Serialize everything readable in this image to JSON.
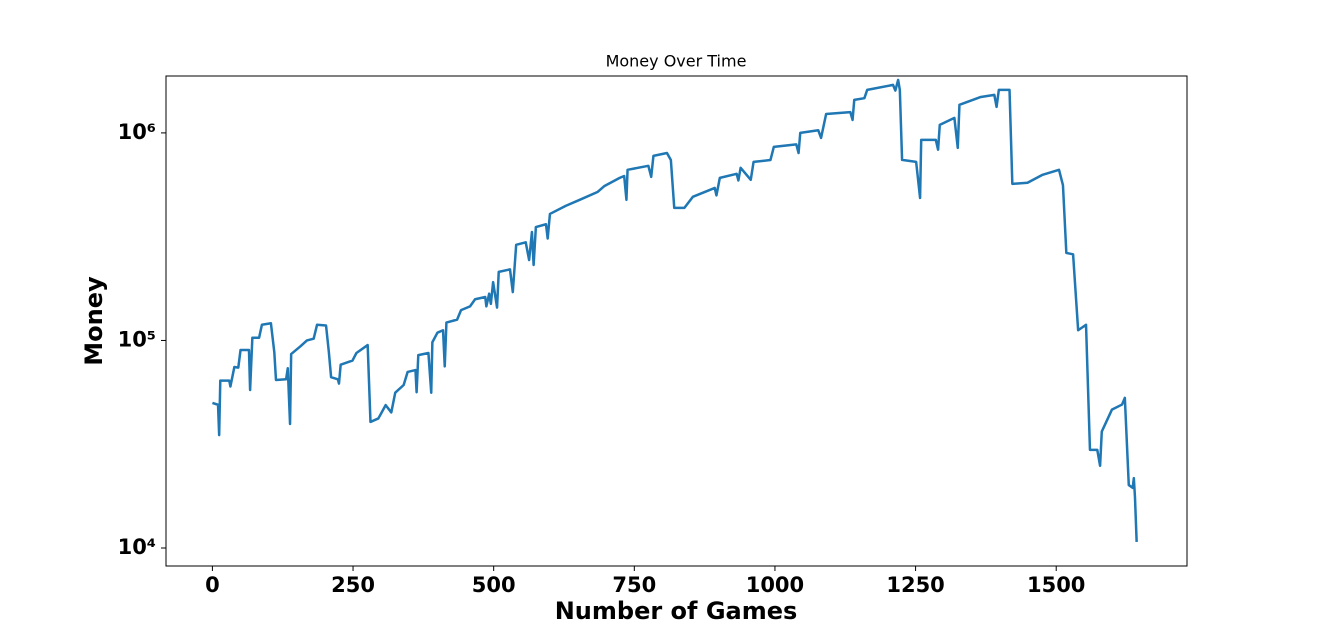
{
  "chart_data": {
    "type": "line",
    "title": "Money Over Time",
    "xlabel": "Number of Games",
    "ylabel": "Money",
    "yscale": "log",
    "color": "#1f77b4",
    "grid": false,
    "xlim": [
      -82.5,
      1732.5
    ],
    "xticks": [
      0,
      250,
      500,
      750,
      1000,
      1250,
      1500
    ],
    "ylim": [
      8190,
      1880000
    ],
    "yticks": [
      {
        "value": 10000,
        "label": "10⁴"
      },
      {
        "value": 100000,
        "label": "10⁵"
      },
      {
        "value": 1000000,
        "label": "10⁶"
      }
    ],
    "x": [
      0,
      10,
      12,
      14,
      30,
      32,
      39,
      46,
      50,
      65,
      67,
      71,
      83,
      88,
      104,
      110,
      113,
      131,
      134,
      138,
      140,
      157,
      168,
      180,
      186,
      202,
      207,
      211,
      223,
      225,
      228,
      249,
      256,
      276,
      281,
      295,
      308,
      318,
      325,
      340,
      347,
      361,
      363,
      366,
      384,
      389,
      391,
      400,
      410,
      413,
      416,
      435,
      442,
      458,
      467,
      485,
      487,
      492,
      495,
      499,
      506,
      509,
      529,
      534,
      540,
      557,
      563,
      568,
      571,
      575,
      593,
      596,
      600,
      628,
      653,
      685,
      697,
      724,
      732,
      736,
      738,
      775,
      780,
      784,
      808,
      815,
      821,
      839,
      854,
      893,
      896,
      902,
      932,
      935,
      939,
      957,
      962,
      992,
      998,
      1038,
      1042,
      1045,
      1077,
      1082,
      1091,
      1134,
      1138,
      1141,
      1159,
      1164,
      1210,
      1214,
      1219,
      1222,
      1226,
      1251,
      1258,
      1260,
      1286,
      1290,
      1293,
      1319,
      1325,
      1328,
      1366,
      1390,
      1394,
      1398,
      1417,
      1422,
      1449,
      1475,
      1505,
      1512,
      1518,
      1530,
      1539,
      1553,
      1560,
      1573,
      1578,
      1581,
      1599,
      1617,
      1622,
      1629,
      1636,
      1638,
      1640,
      1643
    ],
    "values": [
      50000,
      49000,
      35000,
      64000,
      64000,
      60000,
      74500,
      74000,
      90000,
      90000,
      57700,
      103000,
      103000,
      119000,
      121000,
      88000,
      64500,
      65000,
      73500,
      39600,
      86000,
      94000,
      100000,
      102000,
      119000,
      118000,
      88000,
      66500,
      65000,
      62000,
      76400,
      80000,
      87000,
      95000,
      40500,
      42100,
      48800,
      45000,
      56000,
      61000,
      70500,
      72000,
      56300,
      85000,
      87000,
      56000,
      98000,
      109000,
      112000,
      75000,
      122000,
      126000,
      140000,
      146000,
      158000,
      162000,
      146000,
      168000,
      150000,
      191000,
      144000,
      214000,
      220000,
      171000,
      289000,
      297000,
      244000,
      333000,
      231000,
      352000,
      363000,
      310000,
      407000,
      445000,
      476000,
      520000,
      555000,
      607000,
      620000,
      476000,
      664000,
      694000,
      614000,
      775000,
      800000,
      740000,
      435000,
      435000,
      492000,
      543000,
      500000,
      607000,
      635000,
      590000,
      679000,
      594000,
      725000,
      740000,
      856000,
      880000,
      800000,
      1000000,
      1030000,
      946000,
      1234000,
      1260000,
      1155000,
      1442000,
      1470000,
      1612000,
      1703000,
      1600000,
      1800000,
      1612000,
      741000,
      725000,
      486000,
      925000,
      925000,
      830000,
      1093000,
      1181000,
      847000,
      1365000,
      1490000,
      1525000,
      1335000,
      1612000,
      1612000,
      568000,
      575000,
      627000,
      664000,
      560000,
      264000,
      260000,
      112000,
      119000,
      29700,
      29700,
      24900,
      36400,
      46400,
      49100,
      52900,
      20100,
      19500,
      21700,
      17600,
      10700
    ]
  }
}
